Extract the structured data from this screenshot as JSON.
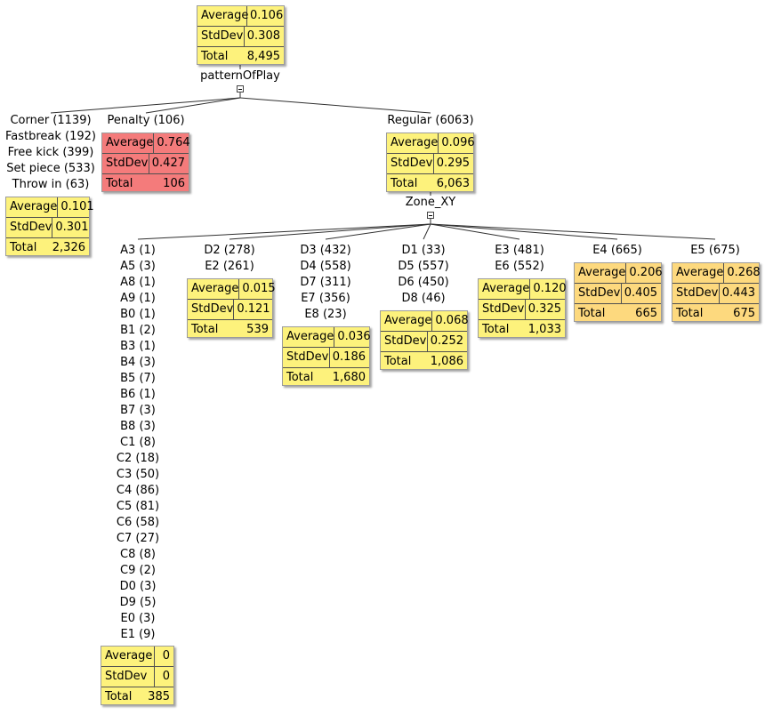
{
  "colors": {
    "yellow": "#fdf27c",
    "red": "#f47b7b",
    "orange": "#fdd97e",
    "edge": "#303030"
  },
  "root": {
    "stats": {
      "average": "0.106",
      "stddev": "0.308",
      "total": "8,495"
    },
    "split_label": "patternOfPlay"
  },
  "pattern_branches": {
    "other": {
      "labels": [
        "Corner (1139)",
        "Fastbreak (192)",
        "Free kick (399)",
        "Set piece (533)",
        "Throw in (63)"
      ],
      "stats": {
        "average": "0.101",
        "stddev": "0.301",
        "total": "2,326"
      }
    },
    "penalty": {
      "labels": [
        "Penalty (106)"
      ],
      "stats": {
        "average": "0.764",
        "stddev": "0.427",
        "total": "106"
      }
    },
    "regular": {
      "labels": [
        "Regular (6063)"
      ],
      "stats": {
        "average": "0.096",
        "stddev": "0.295",
        "total": "6,063"
      },
      "split_label": "Zone_XY"
    }
  },
  "zone_branches": [
    {
      "labels": [
        "A3 (1)",
        "A5 (3)",
        "A8 (1)",
        "A9 (1)",
        "B0 (1)",
        "B1 (2)",
        "B3 (1)",
        "B4 (3)",
        "B5 (7)",
        "B6 (1)",
        "B7 (3)",
        "B8 (3)",
        "C1 (8)",
        "C2 (18)",
        "C3 (50)",
        "C4 (86)",
        "C5 (81)",
        "C6 (58)",
        "C7 (27)",
        "C8 (8)",
        "C9 (2)",
        "D0 (3)",
        "D9 (5)",
        "E0 (3)",
        "E1 (9)"
      ],
      "stats": {
        "average": "0",
        "stddev": "0",
        "total": "385"
      }
    },
    {
      "labels": [
        "D2 (278)",
        "E2 (261)"
      ],
      "stats": {
        "average": "0.015",
        "stddev": "0.121",
        "total": "539"
      }
    },
    {
      "labels": [
        "D3 (432)",
        "D4 (558)",
        "D7 (311)",
        "E7 (356)",
        "E8 (23)"
      ],
      "stats": {
        "average": "0.036",
        "stddev": "0.186",
        "total": "1,680"
      }
    },
    {
      "labels": [
        "D1 (33)",
        "D5 (557)",
        "D6 (450)",
        "D8 (46)"
      ],
      "stats": {
        "average": "0.068",
        "stddev": "0.252",
        "total": "1,086"
      }
    },
    {
      "labels": [
        "E3 (481)",
        "E6 (552)"
      ],
      "stats": {
        "average": "0.120",
        "stddev": "0.325",
        "total": "1,033"
      }
    },
    {
      "labels": [
        "E4 (665)"
      ],
      "stats": {
        "average": "0.206",
        "stddev": "0.405",
        "total": "665"
      }
    },
    {
      "labels": [
        "E5 (675)"
      ],
      "stats": {
        "average": "0.268",
        "stddev": "0.443",
        "total": "675"
      }
    }
  ],
  "ui": {
    "average_label": "Average",
    "stddev_label": "StdDev",
    "total_label": "Total"
  }
}
